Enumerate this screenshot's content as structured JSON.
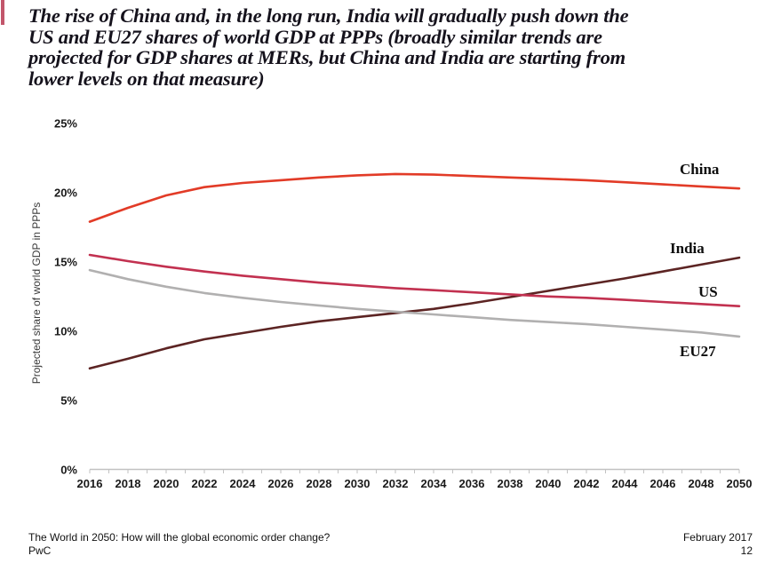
{
  "slide": {
    "title_lines": [
      "The rise of China and, in the long run, India will gradually push down the",
      "US and EU27 shares of world GDP at PPPs (broadly similar trends are",
      "projected for GDP shares at MERs, but China and India are starting from",
      "lower levels on that measure)"
    ],
    "title_color": "#15121c",
    "accent_bar_color": "#c2566b"
  },
  "footer": {
    "doc_title": "The World in 2050: How will the global economic order change?",
    "brand": "PwC",
    "date": "February 2017",
    "page_number": "12"
  },
  "chart_data": {
    "type": "line",
    "title": "",
    "xlabel": "",
    "ylabel": "Projected share of world GDP in PPPs",
    "x": [
      2016,
      2018,
      2020,
      2022,
      2024,
      2026,
      2028,
      2030,
      2032,
      2034,
      2036,
      2038,
      2040,
      2042,
      2044,
      2046,
      2048,
      2050
    ],
    "xlim": [
      2016,
      2050
    ],
    "ylim": [
      0,
      25
    ],
    "y_ticks": [
      0,
      5,
      10,
      15,
      20,
      25
    ],
    "y_tick_labels": [
      "0%",
      "5%",
      "10%",
      "15%",
      "20%",
      "25%"
    ],
    "x_minor_tick_every": 1,
    "grid": false,
    "legend_position": "line-end-labels",
    "axis_color": "#c2c2c2",
    "series": [
      {
        "name": "China",
        "color": "#e23b27",
        "values": [
          17.9,
          18.9,
          19.8,
          20.4,
          20.7,
          20.9,
          21.1,
          21.25,
          21.35,
          21.3,
          21.2,
          21.1,
          21.0,
          20.9,
          20.75,
          20.6,
          20.45,
          20.3
        ]
      },
      {
        "name": "India",
        "color": "#5c2423",
        "values": [
          7.3,
          8.0,
          8.75,
          9.4,
          9.85,
          10.3,
          10.7,
          11.0,
          11.3,
          11.6,
          12.0,
          12.45,
          12.9,
          13.35,
          13.8,
          14.3,
          14.8,
          15.3
        ]
      },
      {
        "name": "US",
        "color": "#c23150",
        "values": [
          15.5,
          15.05,
          14.65,
          14.3,
          14.0,
          13.75,
          13.5,
          13.3,
          13.1,
          12.95,
          12.8,
          12.65,
          12.5,
          12.4,
          12.25,
          12.1,
          11.95,
          11.8
        ]
      },
      {
        "name": "EU27",
        "color": "#b1b0b0",
        "values": [
          14.4,
          13.75,
          13.2,
          12.75,
          12.4,
          12.1,
          11.85,
          11.6,
          11.4,
          11.2,
          11.0,
          10.8,
          10.65,
          10.5,
          10.3,
          10.1,
          9.9,
          9.6
        ]
      }
    ]
  }
}
